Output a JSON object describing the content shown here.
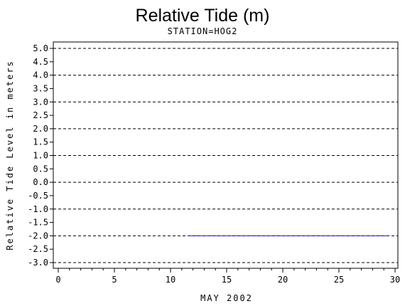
{
  "chart_data": {
    "type": "line",
    "title": "Relative Tide (m)",
    "subtitle": "STATION=HOG2",
    "xlabel": "MAY 2002",
    "ylabel": "Relative Tide Level in meters",
    "xlim": [
      0,
      30
    ],
    "ylim": [
      -3.0,
      5.0
    ],
    "x_ticks": [
      "0",
      "5",
      "10",
      "15",
      "20",
      "25",
      "30"
    ],
    "y_ticks": [
      "5.0",
      "4.5",
      "4.0",
      "3.5",
      "3.0",
      "2.5",
      "2.0",
      "1.5",
      "1.0",
      "0.5",
      "0.0",
      "-0.5",
      "-1.0",
      "-1.5",
      "-2.0",
      "-2.5",
      "-3.0"
    ],
    "reference_lines_y": [
      5,
      4,
      3,
      2,
      1,
      0,
      -1,
      -2,
      -3
    ],
    "series": [
      {
        "color": "#1f1fb4",
        "x": [
          11.6,
          29.4
        ],
        "y": [
          -2.0,
          -2.0
        ]
      }
    ],
    "grid": "dashed horizontal lines at whole meters"
  }
}
